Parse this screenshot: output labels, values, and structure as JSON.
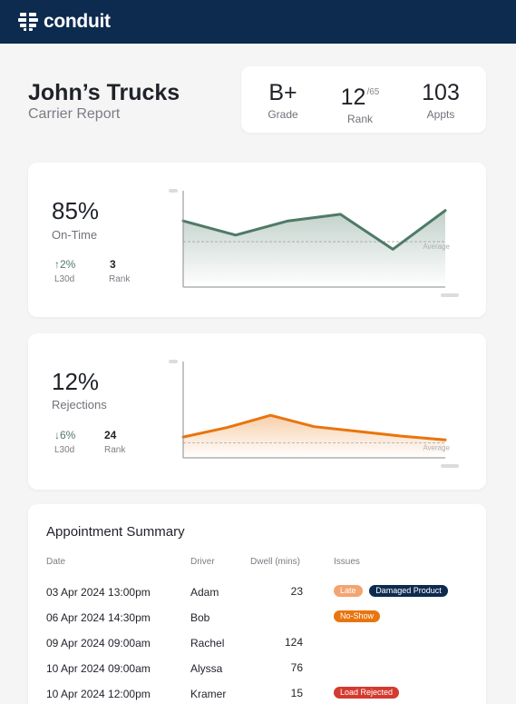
{
  "app": {
    "name": "conduit"
  },
  "header": {
    "title": "John’s Trucks",
    "subtitle": "Carrier Report"
  },
  "stats": {
    "grade": {
      "value": "B+",
      "label": "Grade"
    },
    "rank": {
      "value": "12",
      "total": "/65",
      "label": "Rank"
    },
    "appts": {
      "value": "103",
      "label": "Appts"
    }
  },
  "ontime": {
    "value": "85%",
    "label": "On-Time",
    "change": "↑2%",
    "change_label": "L30d",
    "rank": "3",
    "rank_label": "Rank",
    "average_label": "Average"
  },
  "rejections": {
    "value": "12%",
    "label": "Rejections",
    "change": "↓6%",
    "change_label": "L30d",
    "rank": "24",
    "rank_label": "Rank",
    "average_label": "Average"
  },
  "chart_data": [
    {
      "type": "area",
      "series": [
        {
          "values": [
            0.7,
            0.55,
            0.7,
            0.77,
            0.4,
            0.81
          ]
        }
      ],
      "average": 0.48,
      "ylim": [
        0,
        1
      ],
      "grid": false,
      "colors": {
        "line": "#4f7a67",
        "fill": "#4f7a67",
        "average": "#a6a6a6"
      }
    },
    {
      "type": "area",
      "series": [
        {
          "values": [
            0.22,
            0.32,
            0.45,
            0.33,
            0.28,
            0.23,
            0.19
          ]
        }
      ],
      "average": 0.16,
      "ylim": [
        0,
        1
      ],
      "grid": false,
      "colors": {
        "line": "#e8750f",
        "fill": "#e8750f",
        "average": "#a6a6a6"
      }
    }
  ],
  "appointments": {
    "title": "Appointment Summary",
    "columns": {
      "date": "Date",
      "driver": "Driver",
      "dwell": "Dwell (mins)",
      "issues": "Issues"
    },
    "rows": [
      {
        "date": "03 Apr 2024 13:00pm",
        "driver": "Adam",
        "dwell": "23",
        "issues": [
          {
            "label": "Late",
            "color": "#f4a470"
          },
          {
            "label": "Damaged Product",
            "color": "#0d2a4f"
          }
        ]
      },
      {
        "date": "06 Apr 2024 14:30pm",
        "driver": "Bob",
        "dwell": "",
        "issues": [
          {
            "label": "No-Show",
            "color": "#e8750f"
          }
        ]
      },
      {
        "date": "09 Apr 2024 09:00am",
        "driver": "Rachel",
        "dwell": "124",
        "issues": []
      },
      {
        "date": "10 Apr 2024 09:00am",
        "driver": "Alyssa",
        "dwell": "76",
        "issues": []
      },
      {
        "date": "10 Apr 2024 12:00pm",
        "driver": "Kramer",
        "dwell": "15",
        "issues": [
          {
            "label": "Load Rejected",
            "color": "#d43a2f"
          }
        ]
      }
    ]
  }
}
